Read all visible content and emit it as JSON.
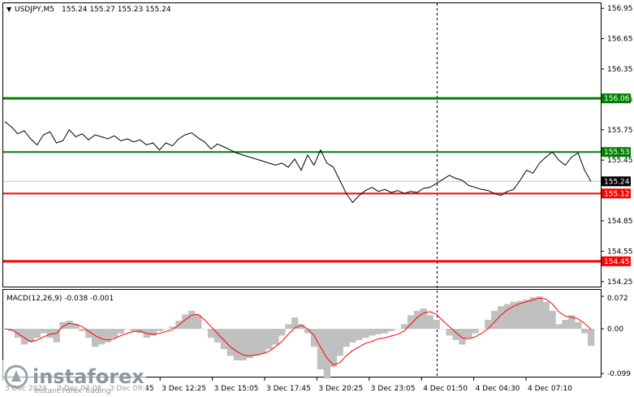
{
  "main_panel": {
    "symbol_timeframe": "USDJPY,M5",
    "ohlc": "155.24 155.27 155.23 155.24",
    "price_ticks": [
      "156.95",
      "156.65",
      "156.35",
      "156.05",
      "155.75",
      "155.45",
      "154.85",
      "154.55",
      "154.25"
    ],
    "levels": [
      {
        "label": "156.06",
        "value": 156.06,
        "color": "#008000",
        "kind": "resistance"
      },
      {
        "label": "155.53",
        "value": 155.53,
        "color": "#008000",
        "kind": "resistance"
      },
      {
        "label": "155.12",
        "value": 155.12,
        "color": "#ff0000",
        "kind": "support"
      },
      {
        "label": "154.45",
        "value": 154.45,
        "color": "#ff0000",
        "kind": "support"
      }
    ],
    "current_price": {
      "label": "155.24",
      "value": 155.24
    }
  },
  "macd_panel": {
    "title": "MACD(12,26,9) -0.038 -0.001",
    "ticks": [
      "0.072",
      "0.00",
      "-0.099"
    ]
  },
  "time_axis": {
    "labels": [
      "3 Dec 2024",
      "3 Dec 07:05",
      "3 Dec 09:45",
      "3 Dec 12:25",
      "3 Dec 15:05",
      "3 Dec 17:45",
      "3 Dec 20:25",
      "3 Dec 23:05",
      "4 Dec 01:50",
      "4 Dec 04:30",
      "4 Dec 07:10"
    ]
  },
  "watermark": {
    "brand": "instaforex",
    "tagline": "Instant Forex Trading"
  },
  "colors": {
    "price_line": "#000000",
    "signal_line": "#ff0000",
    "histogram": "#c0c0c0",
    "support": "#ff0000",
    "resistance": "#008000",
    "tag_dark": "#000000"
  },
  "chart_data": {
    "type": "line",
    "title": "USDJPY,M5",
    "ylim": [
      154.2,
      157.0
    ],
    "y_ticks": [
      156.95,
      156.65,
      156.35,
      156.05,
      155.75,
      155.45,
      154.85,
      154.55,
      154.25
    ],
    "price": [
      155.83,
      155.78,
      155.71,
      155.74,
      155.66,
      155.6,
      155.7,
      155.73,
      155.62,
      155.64,
      155.75,
      155.68,
      155.71,
      155.65,
      155.7,
      155.68,
      155.66,
      155.69,
      155.64,
      155.66,
      155.63,
      155.65,
      155.6,
      155.62,
      155.55,
      155.62,
      155.59,
      155.66,
      155.7,
      155.72,
      155.67,
      155.63,
      155.56,
      155.61,
      155.58,
      155.55,
      155.52,
      155.5,
      155.48,
      155.46,
      155.44,
      155.42,
      155.4,
      155.42,
      155.38,
      155.46,
      155.35,
      155.5,
      155.4,
      155.55,
      155.42,
      155.38,
      155.25,
      155.12,
      155.03,
      155.1,
      155.15,
      155.18,
      155.14,
      155.16,
      155.13,
      155.15,
      155.12,
      155.14,
      155.13,
      155.17,
      155.18,
      155.22,
      155.26,
      155.3,
      155.27,
      155.25,
      155.2,
      155.18,
      155.16,
      155.15,
      155.12,
      155.1,
      155.14,
      155.16,
      155.25,
      155.35,
      155.32,
      155.42,
      155.48,
      155.53,
      155.45,
      155.4,
      155.48,
      155.52,
      155.35,
      155.24
    ],
    "macd": {
      "hist": [
        0.0,
        -0.005,
        -0.02,
        -0.035,
        -0.03,
        -0.02,
        -0.01,
        -0.02,
        -0.03,
        0.015,
        0.018,
        0.01,
        -0.005,
        -0.02,
        -0.04,
        -0.035,
        -0.03,
        -0.02,
        -0.01,
        0.0,
        -0.005,
        -0.01,
        -0.02,
        -0.015,
        -0.005,
        0.0,
        0.005,
        0.018,
        0.032,
        0.04,
        0.03,
        0.0,
        -0.02,
        -0.03,
        -0.045,
        -0.06,
        -0.07,
        -0.07,
        -0.065,
        -0.06,
        -0.055,
        -0.045,
        -0.035,
        -0.015,
        0.01,
        0.025,
        0.01,
        -0.01,
        -0.04,
        -0.09,
        -0.11,
        -0.085,
        -0.06,
        -0.04,
        -0.03,
        -0.025,
        -0.02,
        -0.015,
        -0.012,
        -0.01,
        -0.005,
        0.0,
        0.01,
        0.03,
        0.04,
        0.045,
        0.03,
        0.02,
        0.0,
        -0.015,
        -0.025,
        -0.035,
        -0.02,
        -0.01,
        0.0,
        0.02,
        0.04,
        0.05,
        0.055,
        0.06,
        0.062,
        0.065,
        0.07,
        0.072,
        0.06,
        0.04,
        0.01,
        0.02,
        0.03,
        0.015,
        -0.01,
        -0.038
      ],
      "signal": [
        0.0,
        -0.002,
        -0.01,
        -0.02,
        -0.028,
        -0.025,
        -0.018,
        -0.012,
        -0.01,
        0.005,
        0.012,
        0.01,
        0.005,
        -0.005,
        -0.015,
        -0.022,
        -0.025,
        -0.022,
        -0.015,
        -0.01,
        -0.006,
        -0.005,
        -0.01,
        -0.012,
        -0.01,
        -0.006,
        -0.002,
        0.008,
        0.02,
        0.03,
        0.032,
        0.02,
        0.005,
        -0.01,
        -0.025,
        -0.04,
        -0.05,
        -0.058,
        -0.06,
        -0.058,
        -0.055,
        -0.05,
        -0.04,
        -0.028,
        -0.012,
        0.002,
        0.008,
        0.0,
        -0.015,
        -0.04,
        -0.065,
        -0.08,
        -0.075,
        -0.06,
        -0.048,
        -0.04,
        -0.032,
        -0.028,
        -0.022,
        -0.02,
        -0.016,
        -0.012,
        -0.005,
        0.01,
        0.025,
        0.035,
        0.038,
        0.032,
        0.018,
        0.005,
        -0.008,
        -0.02,
        -0.022,
        -0.018,
        -0.01,
        0.0,
        0.015,
        0.03,
        0.042,
        0.05,
        0.056,
        0.06,
        0.064,
        0.068,
        0.066,
        0.055,
        0.038,
        0.028,
        0.026,
        0.022,
        0.012,
        -0.001
      ],
      "ylim": [
        -0.099,
        0.072
      ]
    }
  }
}
